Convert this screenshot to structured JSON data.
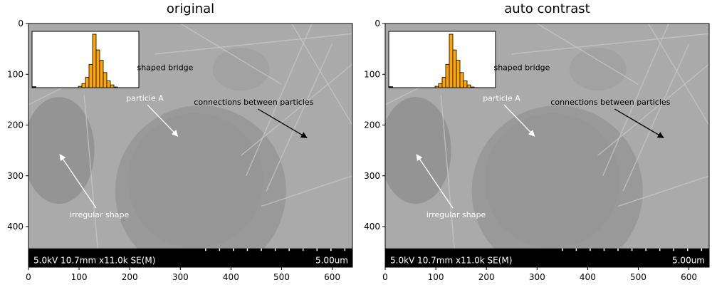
{
  "chart_data": [
    {
      "type": "image",
      "title": "original",
      "xlim": [
        0,
        640
      ],
      "ylim": [
        480,
        0
      ],
      "x_ticks": [
        0,
        100,
        200,
        300,
        400,
        500,
        600
      ],
      "y_ticks": [
        0,
        100,
        200,
        300,
        400
      ],
      "annotations": [
        {
          "text": "particle A",
          "color": "#ffffff",
          "text_xy": [
            230,
            152
          ],
          "arrow_to": [
            295,
            222
          ]
        },
        {
          "text": "connections between particles",
          "color": "#000000",
          "text_xy": [
            445,
            160
          ],
          "arrow_to": [
            550,
            225
          ]
        },
        {
          "text": "irregular shape",
          "color": "#ffffff",
          "text_xy": [
            140,
            382
          ],
          "arrow_to": [
            62,
            258
          ]
        },
        {
          "text": "shaped bridge",
          "color": "#000000",
          "text_xy": [
            270,
            92
          ],
          "arrow_to": null
        }
      ],
      "scalebar": {
        "left": "5.0kV 10.7mm x11.0k SE(M)",
        "right": "5.00um"
      },
      "inset_histogram": {
        "bar_color": "#ffa500",
        "values": [
          0,
          0,
          0,
          0,
          0,
          2,
          6,
          15,
          34,
          78,
          55,
          40,
          22,
          10,
          4,
          1,
          0,
          0,
          0,
          0
        ]
      }
    },
    {
      "type": "image",
      "title": "auto contrast",
      "xlim": [
        0,
        640
      ],
      "ylim": [
        480,
        0
      ],
      "x_ticks": [
        0,
        100,
        200,
        300,
        400,
        500,
        600
      ],
      "y_ticks": [
        0,
        100,
        200,
        300,
        400
      ],
      "annotations": [
        {
          "text": "particle A",
          "color": "#ffffff",
          "text_xy": [
            230,
            152
          ],
          "arrow_to": [
            295,
            222
          ]
        },
        {
          "text": "connections between particles",
          "color": "#000000",
          "text_xy": [
            445,
            160
          ],
          "arrow_to": [
            550,
            225
          ]
        },
        {
          "text": "irregular shape",
          "color": "#ffffff",
          "text_xy": [
            140,
            382
          ],
          "arrow_to": [
            62,
            258
          ]
        },
        {
          "text": "shaped bridge",
          "color": "#000000",
          "text_xy": [
            270,
            92
          ],
          "arrow_to": null
        }
      ],
      "scalebar": {
        "left": "5.0kV 10.7mm x11.0k SE(M)",
        "right": "5.00um"
      },
      "inset_histogram": {
        "bar_color": "#ffa500",
        "values": [
          0,
          0,
          0,
          0,
          0,
          2,
          6,
          15,
          34,
          78,
          55,
          40,
          22,
          10,
          4,
          1,
          0,
          0,
          0,
          0
        ]
      }
    }
  ]
}
